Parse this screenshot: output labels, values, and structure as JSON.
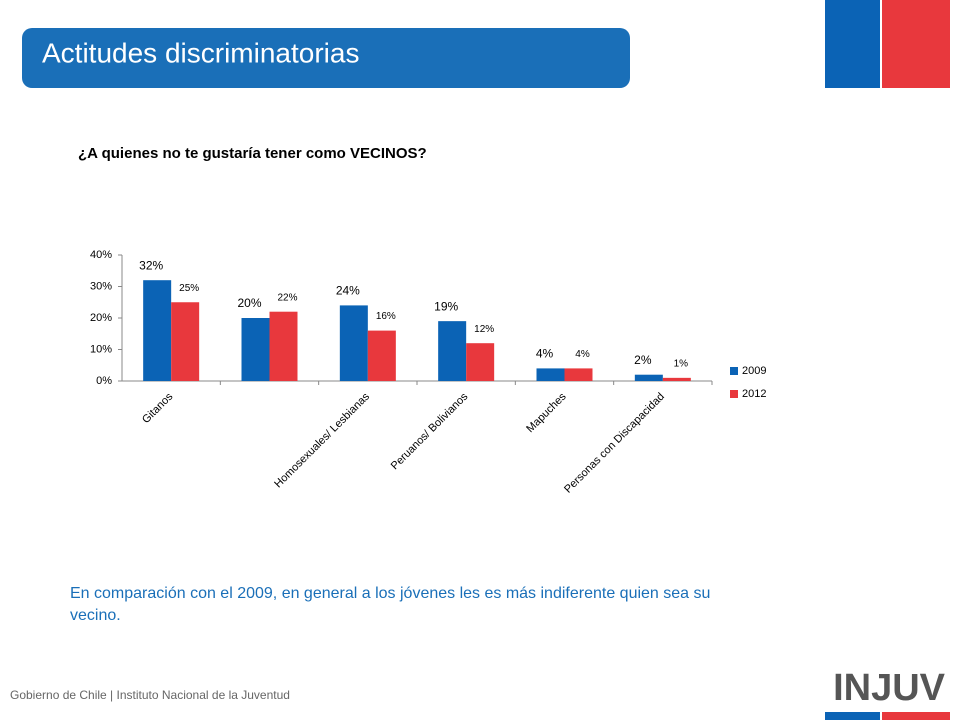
{
  "slide": {
    "title": "Actitudes discriminatorias",
    "note": "En comparación con el 2009, en general a los jóvenes les es más indiferente quien sea su vecino.",
    "footer": "Gobierno de Chile | Instituto Nacional de la Juventud",
    "logo": "INJUV"
  },
  "chart_data": {
    "type": "bar",
    "title": "¿A quienes no te gustaría tener como VECINOS?",
    "categories": [
      "Gitanos",
      null,
      "Homosexuales/ Lesbianas",
      "Peruanos/ Bolivianos",
      "Mapuches",
      "Personas con Discapacidad"
    ],
    "series": [
      {
        "name": "2009",
        "color": "#0b63b5",
        "values": [
          32,
          20,
          24,
          19,
          4,
          2
        ],
        "value_labels": [
          "32%",
          "20%",
          "24%",
          "19%",
          "4%",
          "2%"
        ]
      },
      {
        "name": "2012",
        "color": "#e8383d",
        "values": [
          25,
          22,
          16,
          12,
          4,
          1
        ],
        "value_labels": [
          "25%",
          "22%",
          "16%",
          "12%",
          "4%",
          "1%"
        ]
      }
    ],
    "ylim": [
      0,
      40
    ],
    "yticks": [
      {
        "value": 0,
        "label": "0%"
      },
      {
        "value": 10,
        "label": "10%"
      },
      {
        "value": 20,
        "label": "20%"
      },
      {
        "value": 30,
        "label": "30%"
      },
      {
        "value": 40,
        "label": "40%"
      }
    ],
    "legend": "right"
  }
}
